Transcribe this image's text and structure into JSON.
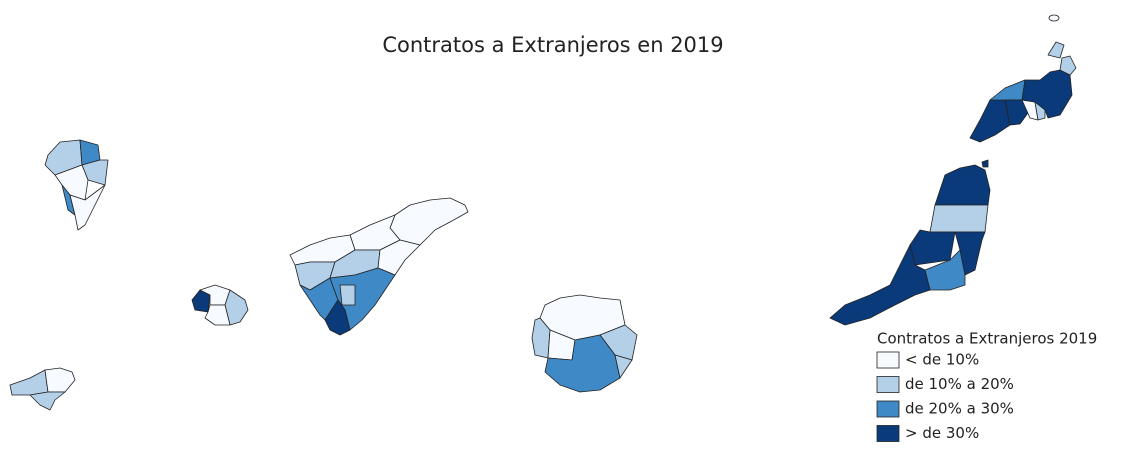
{
  "title": "Contratos a Extranjeros en 2019",
  "legend": {
    "title": "Contratos a Extranjeros 2019",
    "items": [
      {
        "label": "< de 10%",
        "color": "#f7fbff"
      },
      {
        "label": "de 10% a 20%",
        "color": "#b3d0e8"
      },
      {
        "label": "de 20% a 30%",
        "color": "#3f8ac6"
      },
      {
        "label": "> de 30%",
        "color": "#0b3a7a"
      }
    ]
  }
}
